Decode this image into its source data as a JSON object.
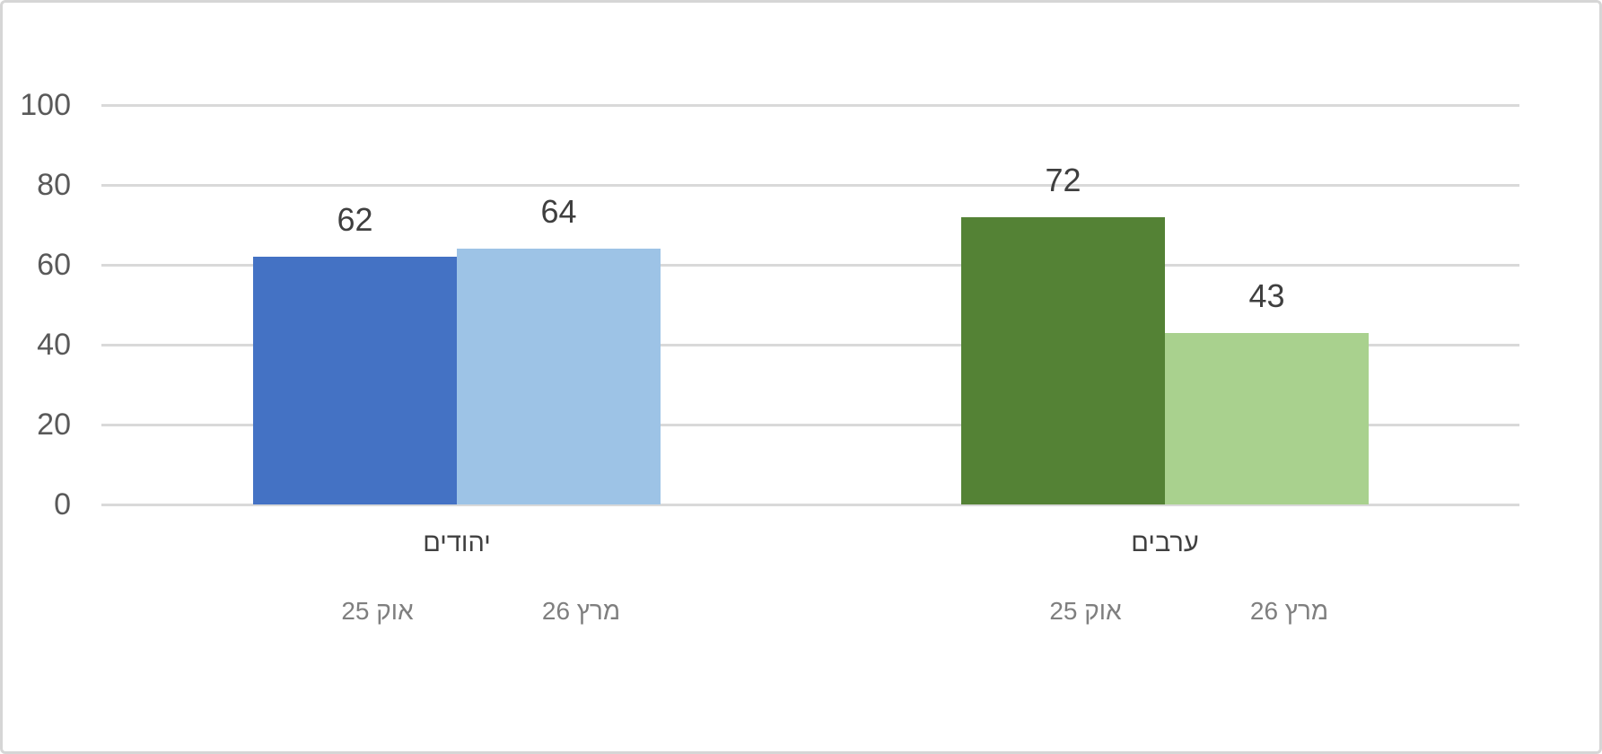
{
  "chart_data": {
    "type": "bar",
    "title": "",
    "xlabel": "",
    "ylabel": "",
    "rtl": true,
    "categories": [
      "יהודים",
      "ערבים"
    ],
    "series": [
      {
        "name": "אוק 25",
        "values": [
          62,
          72
        ],
        "colors": [
          "#4472C4",
          "#548235"
        ]
      },
      {
        "name": "מרץ 26",
        "values": [
          64,
          43
        ],
        "colors": [
          "#9DC3E6",
          "#A9D18E"
        ]
      }
    ],
    "data_labels": [
      [
        62,
        64
      ],
      [
        72,
        43
      ]
    ],
    "ylim": [
      0,
      100
    ],
    "yticks": [
      0,
      20,
      40,
      60,
      80,
      100
    ],
    "grid": true,
    "legend_position": "none"
  },
  "style": {
    "background": "#FFFFFF",
    "frame_border_color": "#D6D6D6",
    "grid_color": "#D9D9D9",
    "axis_label_color": "#595959",
    "data_label_color": "#3F3F3F",
    "category_label_color": "#404040",
    "series_label_color": "#7F7F7F"
  }
}
